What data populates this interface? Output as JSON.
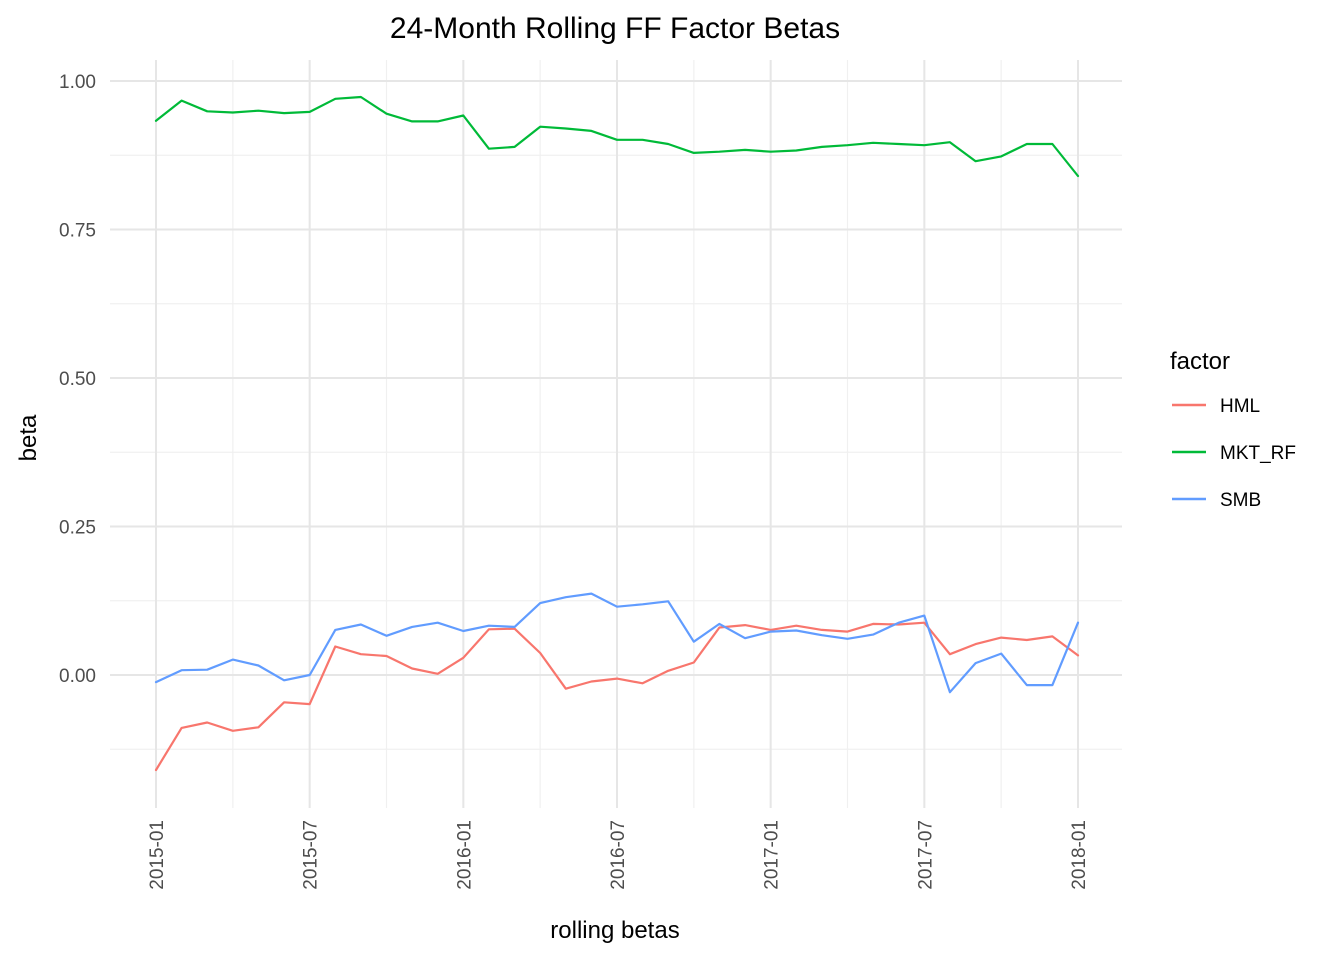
{
  "chart_data": {
    "type": "line",
    "title": "24-Month Rolling FF Factor Betas",
    "xlabel": "rolling betas",
    "ylabel": "beta",
    "legend_title": "factor",
    "legend_position": "right",
    "grid": true,
    "x": [
      "2015-01",
      "2015-02",
      "2015-03",
      "2015-04",
      "2015-05",
      "2015-06",
      "2015-07",
      "2015-08",
      "2015-09",
      "2015-10",
      "2015-11",
      "2015-12",
      "2016-01",
      "2016-02",
      "2016-03",
      "2016-04",
      "2016-05",
      "2016-06",
      "2016-07",
      "2016-08",
      "2016-09",
      "2016-10",
      "2016-11",
      "2016-12",
      "2017-01",
      "2017-02",
      "2017-03",
      "2017-04",
      "2017-05",
      "2017-06",
      "2017-07",
      "2017-08",
      "2017-09",
      "2017-10",
      "2017-11",
      "2017-12",
      "2018-01"
    ],
    "x_tick_labels": [
      "2015-01",
      "2015-07",
      "2016-01",
      "2016-07",
      "2017-01",
      "2017-07",
      "2018-01"
    ],
    "y_tick_labels": [
      "0.00",
      "0.25",
      "0.50",
      "0.75",
      "1.00"
    ],
    "y_ticks": [
      0,
      0.25,
      0.5,
      0.75,
      1.0
    ],
    "ylim": [
      -0.19,
      1.03
    ],
    "series": [
      {
        "name": "HML",
        "color": "#F8766D",
        "values": [
          -0.16,
          -0.089,
          -0.08,
          -0.094,
          -0.088,
          -0.046,
          -0.049,
          0.048,
          0.035,
          0.032,
          0.011,
          0.002,
          0.029,
          0.077,
          0.078,
          0.037,
          -0.023,
          -0.011,
          -0.006,
          -0.014,
          0.007,
          0.021,
          0.08,
          0.084,
          0.076,
          0.083,
          0.076,
          0.073,
          0.086,
          0.085,
          0.088,
          0.035,
          0.052,
          0.063,
          0.059,
          0.065,
          0.033
        ]
      },
      {
        "name": "MKT_RF",
        "color": "#00BA38",
        "values": [
          0.933,
          0.967,
          0.949,
          0.947,
          0.95,
          0.946,
          0.948,
          0.97,
          0.973,
          0.945,
          0.932,
          0.932,
          0.942,
          0.886,
          0.889,
          0.923,
          0.92,
          0.916,
          0.901,
          0.901,
          0.894,
          0.879,
          0.881,
          0.884,
          0.881,
          0.883,
          0.889,
          0.892,
          0.896,
          0.894,
          0.892,
          0.897,
          0.865,
          0.873,
          0.894,
          0.894,
          0.84
        ]
      },
      {
        "name": "SMB",
        "color": "#619CFF",
        "values": [
          -0.012,
          0.008,
          0.009,
          0.026,
          0.016,
          -0.009,
          0.0,
          0.076,
          0.085,
          0.066,
          0.081,
          0.088,
          0.074,
          0.083,
          0.081,
          0.121,
          0.131,
          0.137,
          0.115,
          0.119,
          0.124,
          0.056,
          0.086,
          0.062,
          0.073,
          0.075,
          0.067,
          0.061,
          0.068,
          0.088,
          0.1,
          -0.029,
          0.02,
          0.036,
          -0.017,
          -0.017,
          0.088
        ]
      }
    ]
  }
}
